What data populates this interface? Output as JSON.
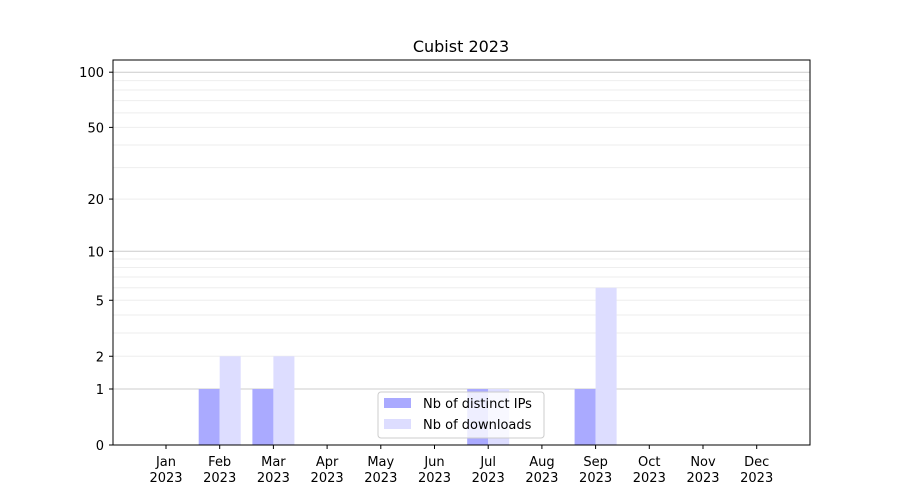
{
  "chart_data": {
    "type": "bar",
    "title": "Cubist 2023",
    "xlabel": "",
    "ylabel": "",
    "yscale": "log(1+y)",
    "ylim": [
      0,
      116
    ],
    "yticks": [
      0,
      1,
      2,
      5,
      10,
      20,
      50,
      100
    ],
    "grid": true,
    "legend_position": "bottom-center",
    "categories": [
      "Jan\n2023",
      "Feb\n2023",
      "Mar\n2023",
      "Apr\n2023",
      "May\n2023",
      "Jun\n2023",
      "Jul\n2023",
      "Aug\n2023",
      "Sep\n2023",
      "Oct\n2023",
      "Nov\n2023",
      "Dec\n2023"
    ],
    "series": [
      {
        "name": "Nb of distinct IPs",
        "color": "#aaaaff",
        "values": [
          0,
          1,
          1,
          0,
          0,
          0,
          1,
          0,
          1,
          0,
          0,
          0
        ]
      },
      {
        "name": "Nb of downloads",
        "color": "#ddddff",
        "values": [
          0,
          2,
          2,
          0,
          0,
          0,
          1,
          0,
          6,
          0,
          0,
          0
        ]
      }
    ]
  }
}
